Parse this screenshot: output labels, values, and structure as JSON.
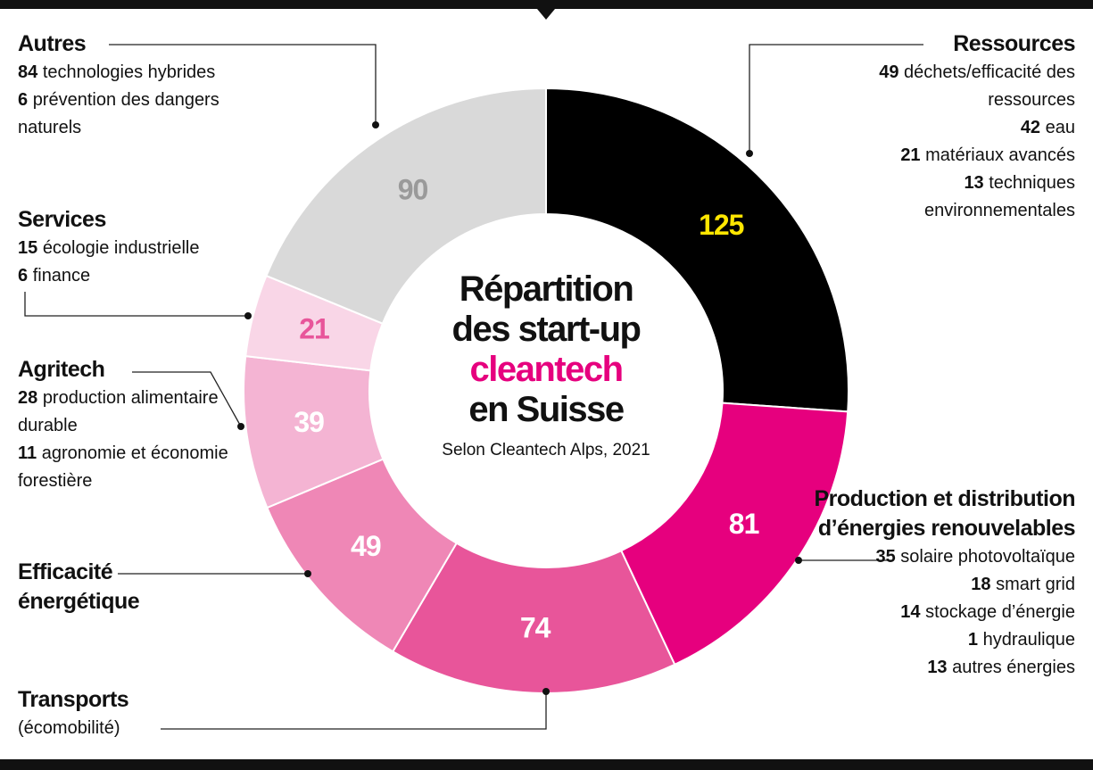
{
  "chart_data": {
    "type": "donut",
    "title": {
      "lines": [
        "Répartition",
        "des start-up",
        "cleantech",
        "en Suisse"
      ],
      "highlight": 2,
      "highlight_color": "#e6007e"
    },
    "subtitle": "Selon Cleantech Alps, 2021",
    "series": [
      {
        "name": "Ressources",
        "value": 125,
        "color": "#000000",
        "label_color": "#ffe600",
        "details": [
          {
            "count": 49,
            "text": "déchets/efficacité des ressources"
          },
          {
            "count": 42,
            "text": "eau"
          },
          {
            "count": 21,
            "text": "matériaux avancés"
          },
          {
            "count": 13,
            "text": "techniques environnementales"
          }
        ]
      },
      {
        "name": "Production et distribution d’énergies renouvelables",
        "value": 81,
        "color": "#e6007e",
        "label_color": "#ffffff",
        "details": [
          {
            "count": 35,
            "text": "solaire photovoltaïque"
          },
          {
            "count": 18,
            "text": "smart grid"
          },
          {
            "count": 14,
            "text": "stockage d’énergie"
          },
          {
            "count": 1,
            "text": "hydraulique"
          },
          {
            "count": 13,
            "text": "autres énergies"
          }
        ]
      },
      {
        "name": "Transports",
        "value": 74,
        "color": "#e8559a",
        "label_color": "#ffffff",
        "details": [
          {
            "text": "(écomobilité)"
          }
        ]
      },
      {
        "name": "Efficacité énergétique",
        "value": 49,
        "color": "#ef87b6",
        "label_color": "#ffffff",
        "details": []
      },
      {
        "name": "Agritech",
        "value": 39,
        "color": "#f4b4d3",
        "label_color": "#ffffff",
        "details": [
          {
            "count": 28,
            "text": "production alimentaire durable"
          },
          {
            "count": 11,
            "text": "agronomie et économie forestière"
          }
        ]
      },
      {
        "name": "Services",
        "value": 21,
        "color": "#f9d6e7",
        "label_color": "#e8559a",
        "details": [
          {
            "count": 15,
            "text": "écologie industrielle"
          },
          {
            "count": 6,
            "text": "finance"
          }
        ]
      },
      {
        "name": "Autres",
        "value": 90,
        "color": "#d9d9d9",
        "label_color": "#9a9a9a",
        "details": [
          {
            "count": 84,
            "text": "technologies hybrides"
          },
          {
            "count": 6,
            "text": "prévention des dangers naturels"
          }
        ]
      }
    ]
  }
}
